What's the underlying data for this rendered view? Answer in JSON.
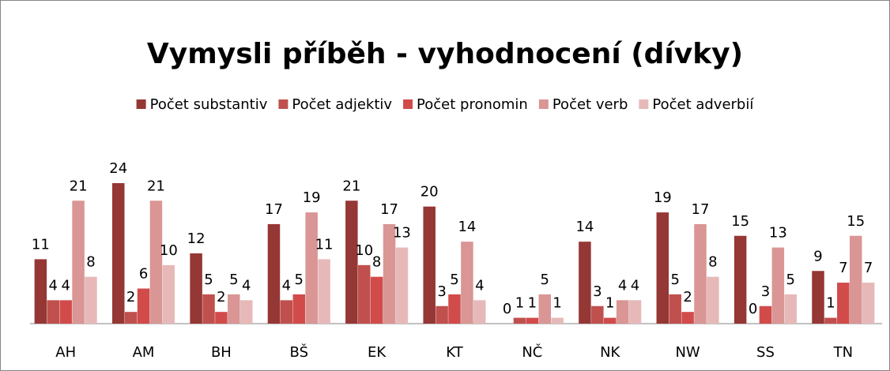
{
  "chart_data": {
    "type": "bar",
    "title": "Vymysli příběh - vyhodnocení (dívky)",
    "categories": [
      "AH",
      "AM",
      "BH",
      "BŠ",
      "EK",
      "KT",
      "NČ",
      "NK",
      "NW",
      "SS",
      "TN"
    ],
    "series": [
      {
        "name": "Počet substantiv",
        "color": "#953735",
        "values": [
          11,
          24,
          12,
          17,
          21,
          20,
          0,
          14,
          19,
          15,
          9
        ]
      },
      {
        "name": "Počet adjektiv",
        "color": "#c0504d",
        "values": [
          4,
          2,
          5,
          4,
          10,
          3,
          1,
          3,
          5,
          0,
          1
        ]
      },
      {
        "name": "Počet pronomin",
        "color": "#d24b4b",
        "values": [
          4,
          6,
          2,
          5,
          8,
          5,
          1,
          1,
          2,
          3,
          7
        ]
      },
      {
        "name": "Počet verb",
        "color": "#d99694",
        "values": [
          21,
          21,
          5,
          19,
          17,
          14,
          5,
          4,
          17,
          13,
          15
        ]
      },
      {
        "name": "Počet adverbií",
        "color": "#e6b9b8",
        "values": [
          8,
          10,
          4,
          11,
          13,
          4,
          1,
          4,
          8,
          5,
          7
        ]
      }
    ],
    "legend": "top"
  }
}
